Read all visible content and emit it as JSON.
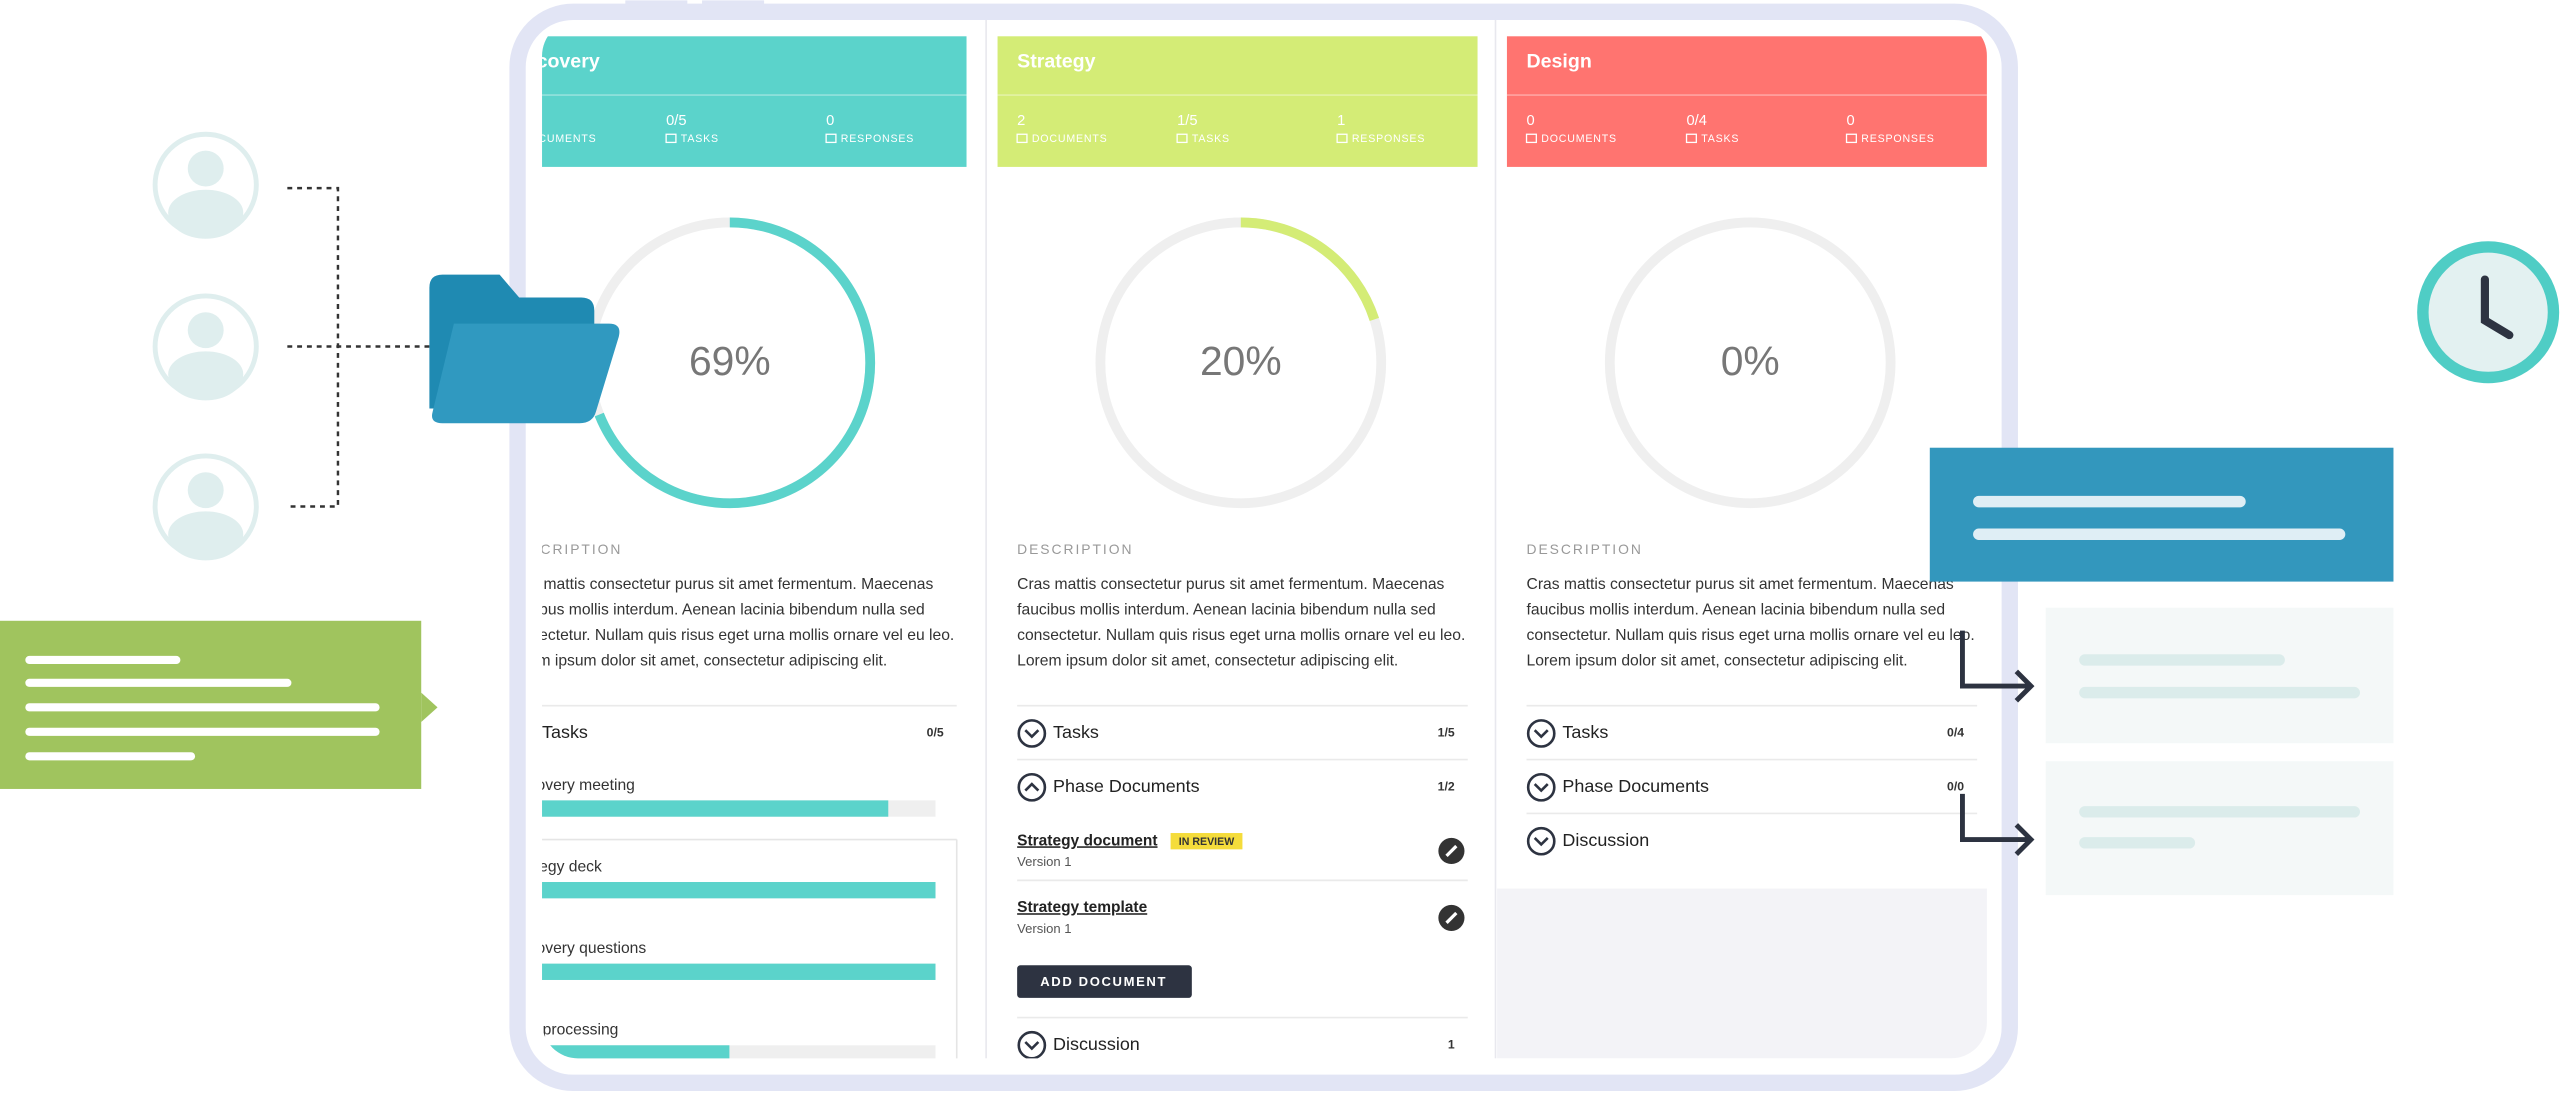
{
  "columns": [
    {
      "title": "Discovery",
      "color": "#5bd3cb",
      "stats": [
        {
          "label": "DOCUMENTS"
        },
        {
          "value": "0/5",
          "label": "TASKS"
        },
        {
          "value": "0",
          "label": "RESPONSES"
        }
      ],
      "progress": {
        "value": 69,
        "label": "69%"
      },
      "description_label": "DESCRIPTION",
      "description": [
        "Cras mattis consectetur purus sit amet fermentum. Maecenas",
        "faucibus mollis interdum. Aenean lacinia bibendum nulla sed",
        "consectetur. Nullam quis risus eget urna mollis ornare vel eu leo.",
        "Lorem ipsum dolor sit amet, consectetur adipiscing elit."
      ],
      "sections": [
        {
          "title": "Tasks",
          "count": "0/5",
          "items": [
            {
              "name": "Discovery meeting",
              "progress": 89
            },
            {
              "name": "Strategy deck",
              "progress": 100
            },
            {
              "name": "Discovery questions",
              "progress": 100
            },
            {
              "name": "Post-processing",
              "progress": 52
            }
          ]
        }
      ]
    },
    {
      "title": "Strategy",
      "color": "#d4ec76",
      "stats": [
        {
          "value": "2",
          "label": "DOCUMENTS"
        },
        {
          "value": "1/5",
          "label": "TASKS"
        },
        {
          "value": "1",
          "label": "RESPONSES"
        }
      ],
      "progress": {
        "value": 20,
        "label": "20%"
      },
      "description_label": "DESCRIPTION",
      "description": [
        "Cras mattis consectetur purus sit amet fermentum. Maecenas",
        "faucibus mollis interdum. Aenean lacinia bibendum nulla sed",
        "consectetur. Nullam quis risus eget urna mollis ornare vel eu leo.",
        "Lorem ipsum dolor sit amet, consectetur adipiscing elit."
      ],
      "sections": [
        {
          "title": "Tasks",
          "count": "1/5"
        },
        {
          "title": "Phase Documents",
          "count": "1/2",
          "documents": [
            {
              "name": "Strategy document",
              "badge": "IN REVIEW",
              "version": "Version 1"
            },
            {
              "name": "Strategy template",
              "version": "Version 1"
            }
          ],
          "button": "ADD DOCUMENT"
        },
        {
          "title": "Discussion",
          "count": "1"
        }
      ]
    },
    {
      "title": "Design",
      "color": "#ff7470",
      "stats": [
        {
          "value": "0",
          "label": "DOCUMENTS"
        },
        {
          "value": "0/4",
          "label": "TASKS"
        },
        {
          "value": "0",
          "label": "RESPONSES"
        }
      ],
      "progress": {
        "value": 0,
        "label": "0%"
      },
      "description_label": "DESCRIPTION",
      "description": [
        "Cras mattis consectetur purus sit amet fermentum. Maecenas",
        "faucibus mollis interdum. Aenean lacinia bibendum nulla sed",
        "consectetur. Nullam quis risus eget urna mollis ornare vel eu leo.",
        "Lorem ipsum dolor sit amet, consectetur adipiscing elit."
      ],
      "sections": [
        {
          "title": "Tasks",
          "count": "0/4"
        },
        {
          "title": "Phase Documents",
          "count": "0/0"
        },
        {
          "title": "Discussion"
        }
      ]
    }
  ]
}
